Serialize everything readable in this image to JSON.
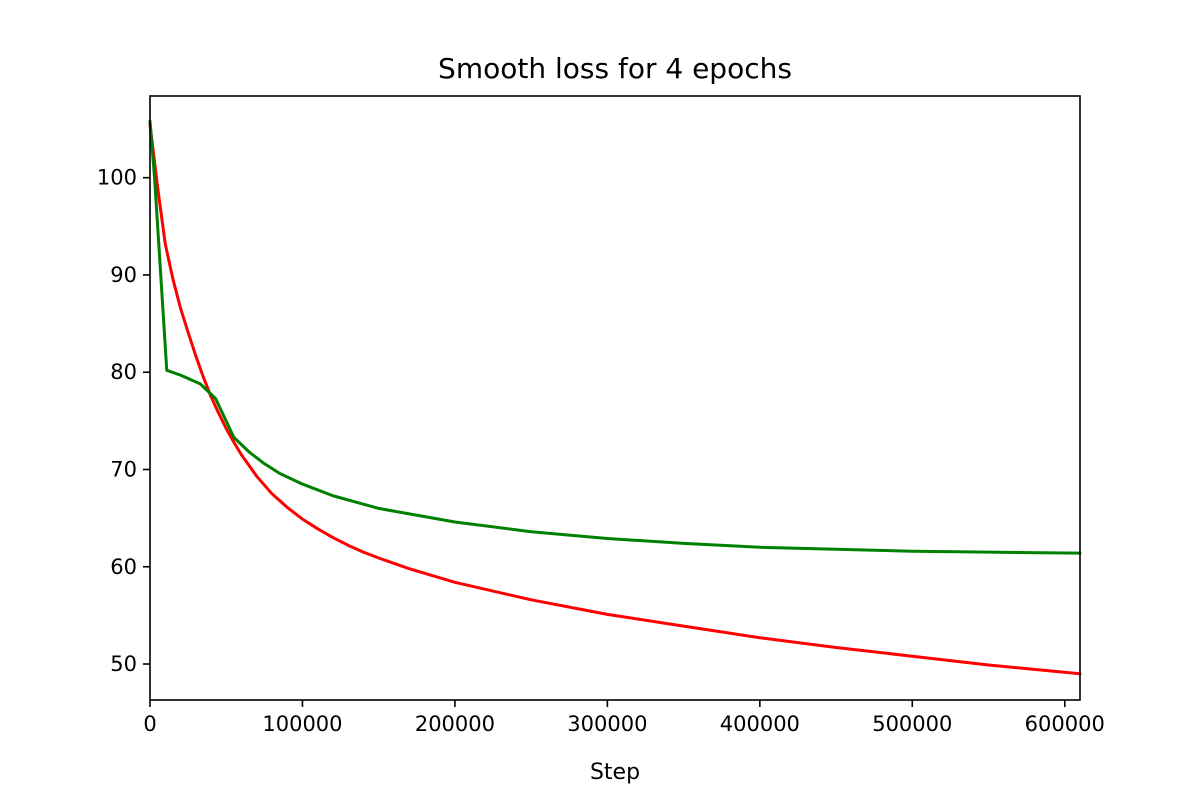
{
  "chart_data": {
    "type": "line",
    "title": "Smooth loss for 4 epochs",
    "xlabel": "Step",
    "ylabel": "",
    "xlim": [
      0,
      610000
    ],
    "ylim": [
      46.3,
      108.4
    ],
    "xticks": [
      0,
      100000,
      200000,
      300000,
      400000,
      500000,
      600000
    ],
    "yticks": [
      50,
      60,
      70,
      80,
      90,
      100
    ],
    "grid": false,
    "legend": "none",
    "series": [
      {
        "color": "#ff0000",
        "x": [
          0,
          5000,
          10000,
          15000,
          20000,
          25000,
          30000,
          35000,
          40000,
          45000,
          50000,
          55000,
          60000,
          70000,
          80000,
          90000,
          100000,
          110000,
          120000,
          130000,
          140000,
          150000,
          170000,
          200000,
          250000,
          300000,
          350000,
          400000,
          450000,
          500000,
          550000,
          610000
        ],
        "y": [
          105.5,
          99.0,
          93.2,
          89.6,
          86.6,
          84.1,
          81.7,
          79.5,
          77.5,
          75.8,
          74.2,
          72.8,
          71.5,
          69.3,
          67.5,
          66.1,
          64.9,
          63.9,
          63.0,
          62.2,
          61.5,
          60.9,
          59.8,
          58.4,
          56.6,
          55.1,
          53.9,
          52.7,
          51.7,
          50.8,
          49.9,
          49.0
        ]
      },
      {
        "color": "#008000",
        "x": [
          0,
          3000,
          11000,
          20000,
          33000,
          43000,
          55000,
          65000,
          75000,
          85000,
          100000,
          120000,
          150000,
          200000,
          250000,
          300000,
          350000,
          400000,
          450000,
          500000,
          550000,
          610000
        ],
        "y": [
          105.8,
          100.0,
          80.2,
          79.7,
          78.8,
          77.3,
          73.3,
          71.8,
          70.6,
          69.6,
          68.5,
          67.3,
          66.0,
          64.6,
          63.6,
          62.9,
          62.4,
          62.0,
          61.8,
          61.6,
          61.5,
          61.4
        ]
      }
    ]
  }
}
